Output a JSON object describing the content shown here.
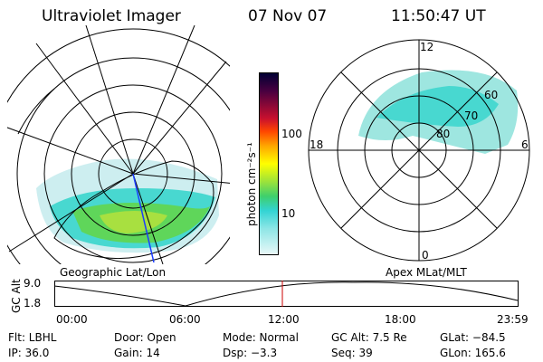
{
  "header": {
    "title": "Ultraviolet Imager",
    "date": "07 Nov 07",
    "time": "11:50:47 UT"
  },
  "left_panel": {
    "caption": "Geographic Lat/Lon"
  },
  "right_panel": {
    "caption": "Apex MLat/MLT",
    "mlt_labels": {
      "top": "12",
      "bottom": "0",
      "left": "18",
      "right": "6"
    },
    "lat_labels": [
      "60",
      "70",
      "80"
    ]
  },
  "colorbar": {
    "unit_label": "photon cm⁻²s⁻¹",
    "tick_100": "100",
    "tick_10": "10"
  },
  "altitude_plot": {
    "ylabel": "GC Alt",
    "y_top": "9.0",
    "y_bottom": "1.8",
    "x_ticks": [
      "00:00",
      "06:00",
      "12:00",
      "18:00",
      "23:59"
    ]
  },
  "info": {
    "filter": "Flt: LBHL",
    "door": "Door: Open",
    "mode": "Mode: Normal",
    "gc_alt": "GC Alt: 7.5 Re",
    "glat": "GLat: −84.5",
    "ip": "IP: 36.0",
    "gain": "Gain: 14",
    "dsp": "Dsp:    −3.3",
    "seq": "Seq: 39",
    "glon": "GLon: 165.6"
  },
  "colors": {
    "marker": "#cc0000",
    "track": "#1a3cff"
  }
}
